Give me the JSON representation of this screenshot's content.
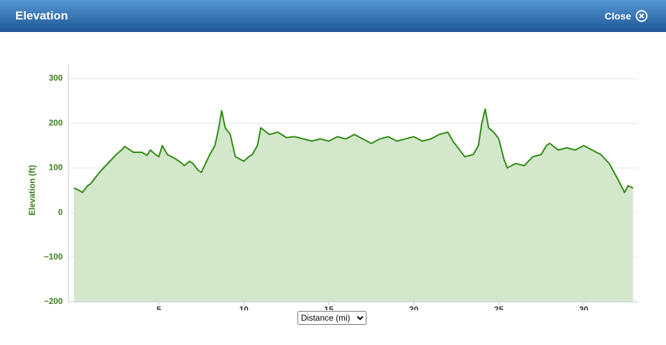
{
  "header": {
    "title": "Elevation",
    "close": "Close"
  },
  "chart_data": {
    "type": "area",
    "y_label": "Elevation (ft)",
    "color": "#2b8a0e",
    "fill": "#d3e7cb",
    "x": [
      0,
      0.3,
      0.5,
      0.8,
      1,
      1.3,
      1.5,
      2,
      2.5,
      2.8,
      3,
      3.5,
      4,
      4.3,
      4.5,
      4.8,
      5,
      5.2,
      5.5,
      6,
      6.3,
      6.5,
      6.8,
      7,
      7.3,
      7.5,
      8,
      8.3,
      8.5,
      8.7,
      8.9,
      9.2,
      9.5,
      10,
      10.3,
      10.5,
      10.8,
      11,
      11.5,
      12,
      12.5,
      13,
      13.5,
      14,
      14.5,
      15,
      15.5,
      16,
      16.5,
      17,
      17.5,
      18,
      18.5,
      19,
      19.5,
      20,
      20.5,
      21,
      21.5,
      22,
      22.3,
      22.5,
      23,
      23.5,
      23.8,
      24,
      24.2,
      24.4,
      24.7,
      25,
      25.3,
      25.5,
      26,
      26.5,
      27,
      27.5,
      27.8,
      28,
      28.5,
      29,
      29.5,
      30,
      30.5,
      31,
      31.5,
      32,
      32.2,
      32.4,
      32.6,
      32.9
    ],
    "values": [
      55,
      50,
      45,
      60,
      65,
      80,
      90,
      110,
      130,
      140,
      148,
      135,
      135,
      128,
      140,
      130,
      125,
      150,
      130,
      120,
      112,
      105,
      115,
      110,
      95,
      90,
      130,
      150,
      185,
      228,
      190,
      175,
      125,
      115,
      125,
      130,
      150,
      190,
      175,
      180,
      168,
      170,
      165,
      160,
      165,
      160,
      170,
      165,
      175,
      165,
      155,
      165,
      170,
      160,
      165,
      170,
      160,
      165,
      175,
      180,
      160,
      150,
      125,
      130,
      150,
      200,
      232,
      190,
      180,
      165,
      120,
      100,
      110,
      105,
      125,
      130,
      150,
      155,
      140,
      145,
      140,
      150,
      140,
      130,
      110,
      75,
      60,
      45,
      60,
      55
    ],
    "xlim": [
      -0.33,
      33.2
    ],
    "ylim": [
      -200,
      300
    ],
    "xticks": [
      5,
      10,
      15,
      20,
      25,
      30
    ],
    "yticks": [
      {
        "value": -200,
        "label": "−200"
      },
      {
        "value": -100,
        "label": "−100"
      },
      0,
      100,
      200,
      300
    ],
    "grid": true
  },
  "controls": {
    "distance_select": "Distance (mi)"
  }
}
